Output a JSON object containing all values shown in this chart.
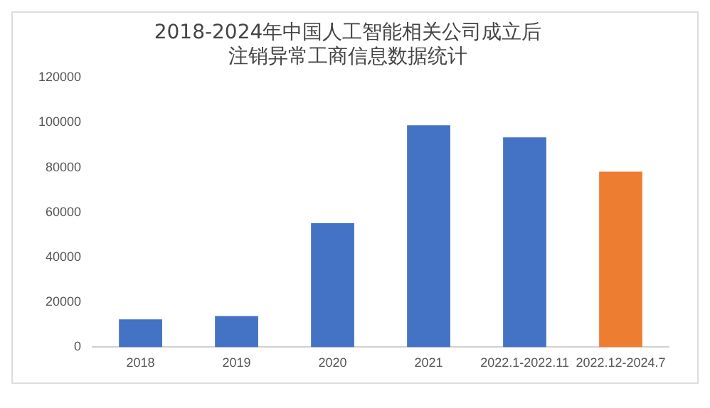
{
  "chart_data": {
    "type": "bar",
    "title": [
      "2018-2024年中国人工智能相关公司成立后",
      "注销异常工商信息数据统计"
    ],
    "categories": [
      "2018",
      "2019",
      "2020",
      "2021",
      "2022.1-2022.11",
      "2022.12-2024.7"
    ],
    "values": [
      12400,
      13800,
      55200,
      98800,
      93400,
      78100
    ],
    "colors": [
      "#4472c4",
      "#4472c4",
      "#4472c4",
      "#4472c4",
      "#4472c4",
      "#ed7d31"
    ],
    "ylim": [
      0,
      120000
    ],
    "yticks": [
      0,
      20000,
      40000,
      60000,
      80000,
      100000,
      120000
    ],
    "grid": false,
    "legend": false
  }
}
